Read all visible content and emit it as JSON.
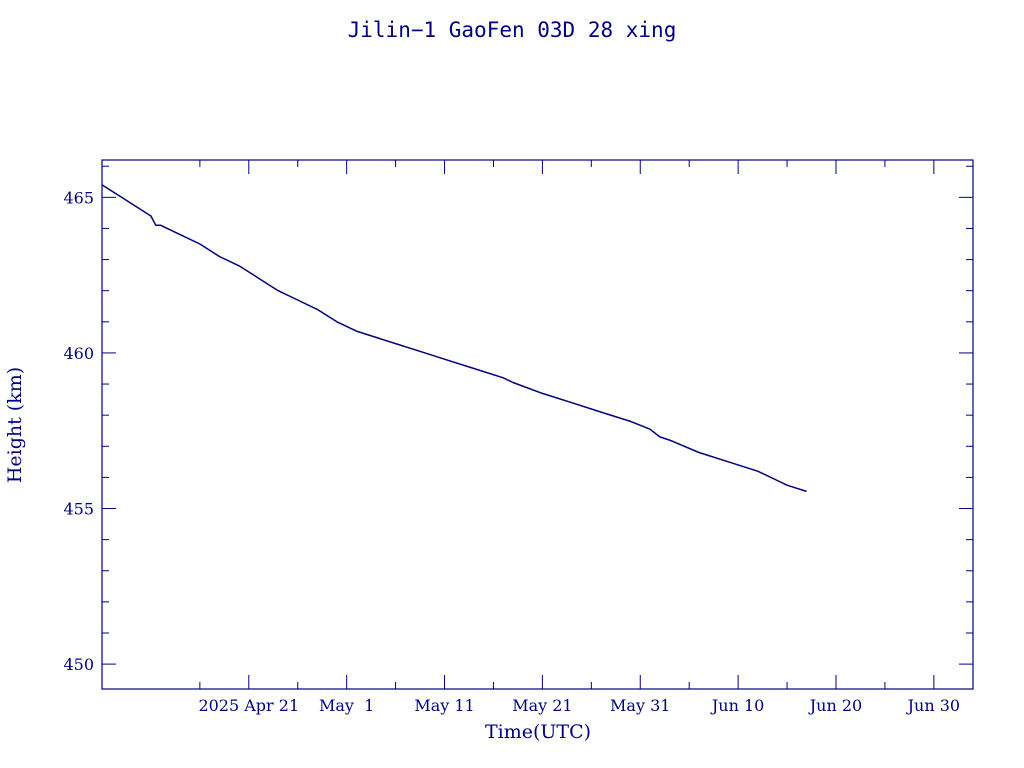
{
  "chart_data": {
    "type": "line",
    "title": "Jilin−1 GaoFen 03D 28 xing",
    "xlabel": "Time(UTC)",
    "ylabel": "Height (km)",
    "x_type": "date",
    "xlim": [
      "2025-04-06",
      "2025-07-04"
    ],
    "ylim": [
      449.2,
      466.2
    ],
    "y_ticks": [
      450,
      455,
      460,
      465
    ],
    "y_tick_labels": [
      "450",
      "455",
      "460",
      "465"
    ],
    "x_ticks": [
      "2025-04-21",
      "2025-05-01",
      "2025-05-11",
      "2025-05-21",
      "2025-05-31",
      "2025-06-10",
      "2025-06-20",
      "2025-06-30"
    ],
    "x_tick_labels": [
      "2025 Apr 21",
      "May  1",
      "May 11",
      "May 21",
      "May 31",
      "Jun 10",
      "Jun 20",
      "Jun 30"
    ],
    "x_minor_ticks": [
      "2025-04-16",
      "2025-04-26",
      "2025-05-06",
      "2025-05-16",
      "2025-05-26",
      "2025-06-05",
      "2025-06-15",
      "2025-06-25"
    ],
    "y_minor_step": 1,
    "grid": false,
    "legend": "none",
    "line_color": "#000080",
    "series": [
      {
        "x": [
          "2025-04-06",
          "2025-04-08",
          "2025-04-10",
          "2025-04-11",
          "2025-04-11 12:00",
          "2025-04-12",
          "2025-04-14",
          "2025-04-16",
          "2025-04-18",
          "2025-04-20",
          "2025-04-22",
          "2025-04-24",
          "2025-04-26",
          "2025-04-28",
          "2025-04-30",
          "2025-05-02",
          "2025-05-04",
          "2025-05-06",
          "2025-05-08",
          "2025-05-11",
          "2025-05-14",
          "2025-05-17",
          "2025-05-18",
          "2025-05-21",
          "2025-05-24",
          "2025-05-27",
          "2025-05-30",
          "2025-06-01",
          "2025-06-02",
          "2025-06-03",
          "2025-06-06",
          "2025-06-09",
          "2025-06-12",
          "2025-06-13",
          "2025-06-14",
          "2025-06-15",
          "2025-06-16",
          "2025-06-17"
        ],
        "y": [
          465.4,
          465.0,
          464.6,
          464.4,
          464.1,
          464.1,
          463.8,
          463.5,
          463.1,
          462.8,
          462.4,
          462.0,
          461.7,
          461.4,
          461.0,
          460.7,
          460.5,
          460.3,
          460.1,
          459.8,
          459.5,
          459.2,
          459.05,
          458.7,
          458.4,
          458.1,
          457.8,
          457.55,
          457.3,
          457.2,
          456.8,
          456.5,
          456.2,
          456.05,
          455.9,
          455.75,
          455.65,
          455.55
        ]
      }
    ]
  }
}
